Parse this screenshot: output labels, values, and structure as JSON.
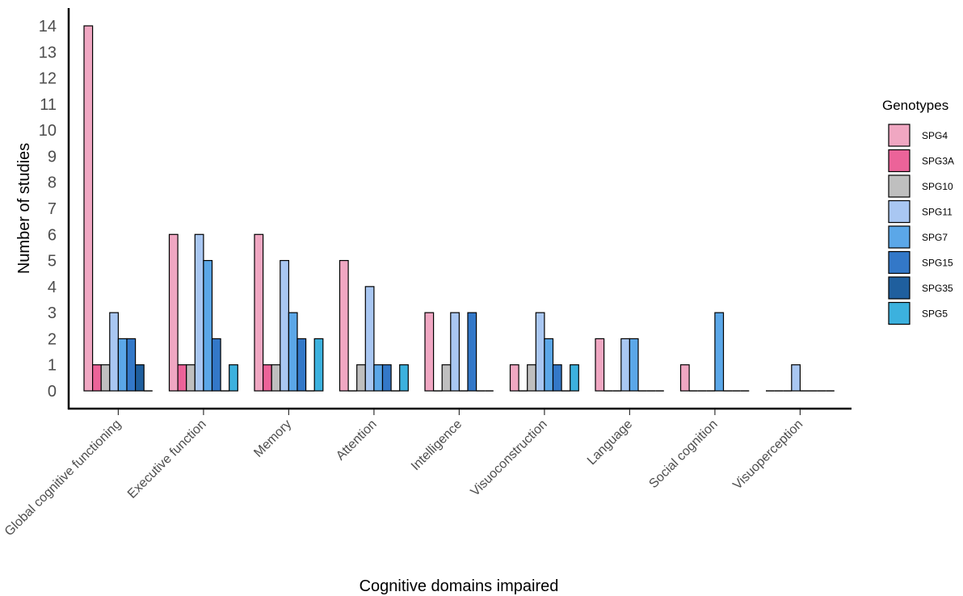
{
  "chart_data": {
    "type": "bar",
    "xlabel": "Cognitive domains impaired",
    "ylabel": "Number of studies",
    "ylim": [
      0,
      14
    ],
    "yticks": [
      0,
      1,
      2,
      3,
      4,
      5,
      6,
      7,
      8,
      9,
      10,
      11,
      12,
      13,
      14
    ],
    "categories": [
      "Global cognitive functioning",
      "Executive function",
      "Memory",
      "Attention",
      "Intelligence",
      "Visuoconstruction",
      "Language",
      "Social cognition",
      "Visuoperception"
    ],
    "legend_title": "Genotypes",
    "legend_position": "right",
    "grid": false,
    "series": [
      {
        "name": "SPG4",
        "color": "#f0a7c2",
        "values": [
          14,
          6,
          6,
          5,
          3,
          1,
          2,
          1,
          0
        ]
      },
      {
        "name": "SPG3A",
        "color": "#ec6399",
        "values": [
          1,
          1,
          1,
          0,
          0,
          0,
          0,
          0,
          0
        ]
      },
      {
        "name": "SPG10",
        "color": "#bfbfbf",
        "values": [
          1,
          1,
          1,
          1,
          1,
          1,
          0,
          0,
          0
        ]
      },
      {
        "name": "SPG11",
        "color": "#a9c7f2",
        "values": [
          3,
          6,
          5,
          4,
          3,
          3,
          2,
          0,
          1
        ]
      },
      {
        "name": "SPG7",
        "color": "#5ba7e8",
        "values": [
          2,
          5,
          3,
          1,
          0,
          2,
          2,
          3,
          0
        ]
      },
      {
        "name": "SPG15",
        "color": "#3378c8",
        "values": [
          2,
          2,
          2,
          1,
          3,
          1,
          0,
          0,
          0
        ]
      },
      {
        "name": "SPG35",
        "color": "#1f5f9e",
        "values": [
          1,
          0,
          0,
          0,
          0,
          0,
          0,
          0,
          0
        ]
      },
      {
        "name": "SPG5",
        "color": "#3cb1de",
        "values": [
          0,
          1,
          2,
          1,
          0,
          1,
          0,
          0,
          0
        ]
      }
    ]
  }
}
